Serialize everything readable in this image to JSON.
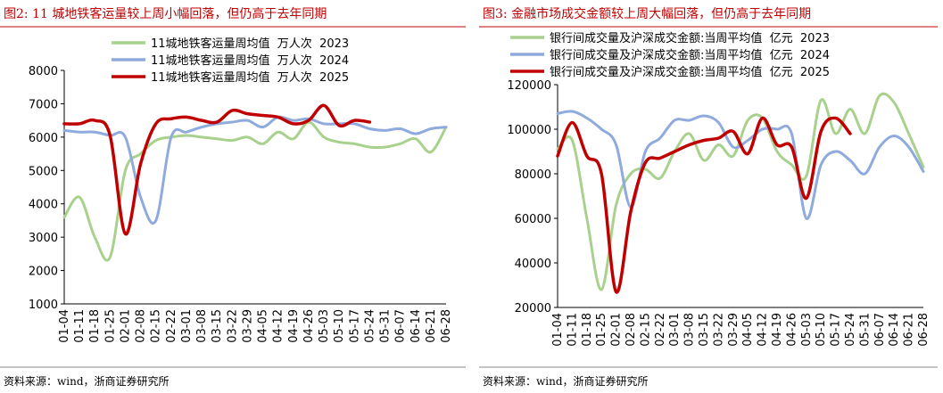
{
  "chart_data": [
    {
      "type": "line",
      "title": "图2:  11 城地铁客运量较上周小幅回落，但仍高于去年同期",
      "source": "资料来源：wind，浙商证券研究所",
      "categories": [
        "01-04",
        "01-11",
        "01-18",
        "01-25",
        "02-01",
        "02-08",
        "02-15",
        "02-22",
        "03-01",
        "03-08",
        "03-15",
        "03-22",
        "03-29",
        "04-05",
        "04-12",
        "04-19",
        "04-26",
        "05-03",
        "05-10",
        "05-17",
        "05-24",
        "05-31",
        "06-07",
        "06-14",
        "06-21",
        "06-28"
      ],
      "series": [
        {
          "name": "11城地铁客运量周均值  万人次  2023",
          "color": "#a9d18e",
          "values": [
            3600,
            4200,
            3000,
            2400,
            5000,
            5500,
            5900,
            6000,
            6050,
            6000,
            5950,
            5900,
            6000,
            5800,
            6150,
            5950,
            6450,
            6000,
            5850,
            5800,
            5700,
            5700,
            5800,
            5950,
            5550,
            6300
          ]
        },
        {
          "name": "11城地铁客运量周均值  万人次  2024",
          "color": "#8faadc",
          "values": [
            6200,
            6150,
            6150,
            6050,
            6000,
            4200,
            3500,
            6000,
            6150,
            6300,
            6400,
            6450,
            6500,
            6300,
            6600,
            6500,
            6550,
            6400,
            6400,
            6400,
            6250,
            6200,
            6250,
            6100,
            6250,
            6300
          ]
        },
        {
          "name": "11城地铁客运量周均值  万人次  2025",
          "color": "#c00000",
          "values": [
            6400,
            6400,
            6500,
            6050,
            3100,
            5200,
            6400,
            6550,
            6600,
            6500,
            6450,
            6800,
            6700,
            6650,
            6600,
            6400,
            6500,
            6950,
            6350,
            6500,
            6450,
            null,
            null,
            null,
            null,
            null
          ]
        }
      ],
      "ylim": [
        1000,
        8000
      ],
      "yticks": [
        1000,
        2000,
        3000,
        4000,
        5000,
        6000,
        7000,
        8000
      ],
      "legend": "top"
    },
    {
      "type": "line",
      "title": "图3:  金融市场成交金额较上周大幅回落，但仍高于去年同期",
      "source": "资料来源：wind，浙商证券研究所",
      "categories": [
        "01-04",
        "01-11",
        "01-18",
        "01-25",
        "02-01",
        "02-08",
        "02-15",
        "02-22",
        "03-01",
        "03-08",
        "03-15",
        "03-22",
        "03-29",
        "04-05",
        "04-12",
        "04-19",
        "04-26",
        "05-03",
        "05-10",
        "05-17",
        "05-24",
        "05-31",
        "06-07",
        "06-14",
        "06-21",
        "06-28"
      ],
      "series": [
        {
          "name": "银行间成交量及沪深成交金额:当周平均值  亿元  2023",
          "color": "#a9d18e",
          "values": [
            91000,
            95000,
            60000,
            28000,
            66000,
            80000,
            82000,
            78000,
            90000,
            98000,
            86000,
            93000,
            88000,
            104000,
            105000,
            90000,
            84000,
            79000,
            113000,
            98000,
            109000,
            98000,
            115000,
            112000,
            98000,
            83000
          ]
        },
        {
          "name": "银行间成交量及沪深成交金额:当周平均值  亿元  2024",
          "color": "#8faadc",
          "values": [
            107000,
            108000,
            105000,
            100000,
            93000,
            65000,
            90000,
            96000,
            104000,
            104000,
            106000,
            103000,
            92000,
            95000,
            100000,
            100000,
            98000,
            60000,
            84000,
            90000,
            86000,
            80000,
            92000,
            97000,
            92000,
            81000
          ]
        },
        {
          "name": "银行间成交量及沪深成交金额:当周平均值  亿元  2025",
          "color": "#c00000",
          "values": [
            88000,
            103000,
            88000,
            80000,
            27000,
            63000,
            85000,
            87000,
            90000,
            93000,
            95000,
            96000,
            99000,
            89000,
            105000,
            93000,
            92000,
            69000,
            99000,
            105000,
            98000,
            null,
            null,
            null,
            null,
            null
          ]
        }
      ],
      "ylim": [
        20000,
        120000
      ],
      "yticks": [
        20000,
        40000,
        60000,
        80000,
        100000,
        120000
      ],
      "legend": "top"
    }
  ]
}
